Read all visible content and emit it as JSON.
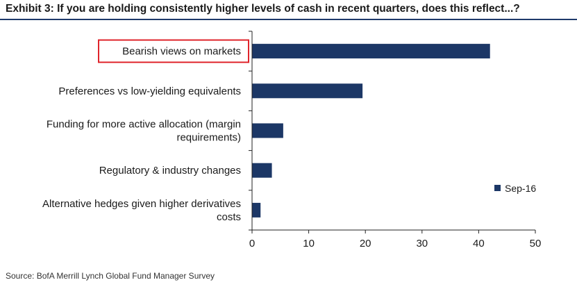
{
  "header": {
    "title": "Exhibit 3: If you are holding consistently higher levels of cash in recent quarters, does this reflect...?"
  },
  "footer": {
    "source": "Source: BofA Merrill Lynch Global Fund Manager Survey"
  },
  "colors": {
    "bar": "#1c3766",
    "highlight_box": "#e0242b",
    "axis": "#222222"
  },
  "chart_data": {
    "type": "bar",
    "orientation": "horizontal",
    "categories": [
      [
        "Bearish views on markets"
      ],
      [
        "Preferences vs low-yielding equivalents"
      ],
      [
        "Funding for more active allocation (margin",
        "requirements)"
      ],
      [
        "Regulatory & industry changes"
      ],
      [
        "Alternative hedges given higher derivatives",
        "costs"
      ]
    ],
    "series": [
      {
        "name": "Sep-16",
        "values": [
          42,
          19.5,
          5.5,
          3.5,
          1.5
        ]
      }
    ],
    "xlim": [
      0,
      50
    ],
    "xticks": [
      0,
      10,
      20,
      30,
      40,
      50
    ],
    "highlighted_category": 0,
    "legend": "right",
    "grid": false
  }
}
